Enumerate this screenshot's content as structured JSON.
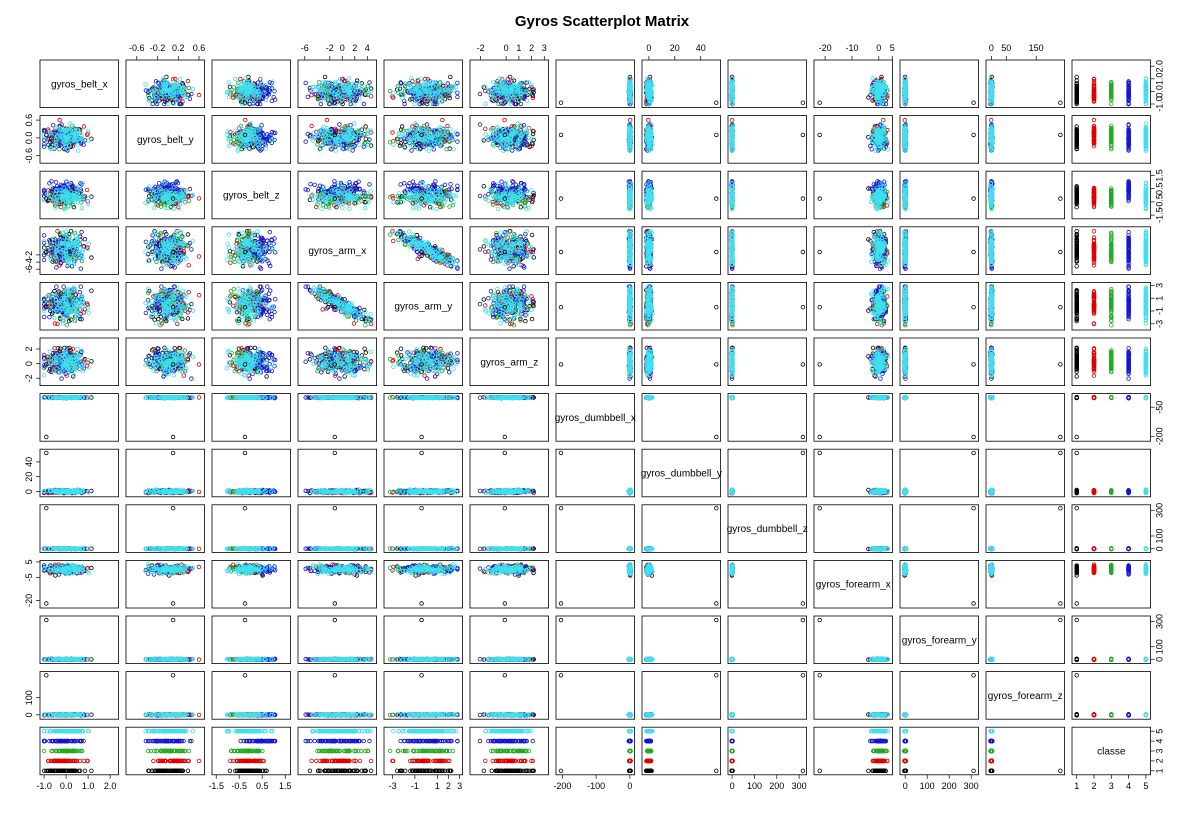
{
  "chart_data": {
    "type": "scatter",
    "title": "Gyros Scatterplot Matrix",
    "variables": [
      {
        "name": "gyros_belt_x",
        "range": [
          -1.05,
          2.25
        ]
      },
      {
        "name": "gyros_belt_y",
        "range": [
          -0.75,
          0.65
        ]
      },
      {
        "name": "gyros_belt_z",
        "range": [
          -1.55,
          1.6
        ]
      },
      {
        "name": "gyros_arm_x",
        "range": [
          -6.6,
          5
        ]
      },
      {
        "name": "gyros_arm_y",
        "range": [
          -3.5,
          3
        ]
      },
      {
        "name": "gyros_arm_z",
        "range": [
          -2.6,
          3.1
        ]
      },
      {
        "name": "gyros_dumbbell_x",
        "range": [
          -210,
          5
        ]
      },
      {
        "name": "gyros_dumbbell_y",
        "range": [
          -3,
          53
        ]
      },
      {
        "name": "gyros_dumbbell_z",
        "range": [
          -5,
          320
        ]
      },
      {
        "name": "gyros_forearm_x",
        "range": [
          -23,
          4
        ]
      },
      {
        "name": "gyros_forearm_y",
        "range": [
          -10,
          320
        ]
      },
      {
        "name": "gyros_forearm_z",
        "range": [
          -8,
          235
        ]
      },
      {
        "name": "classe",
        "range": [
          0.9,
          5.1
        ]
      }
    ],
    "top_ticks": [
      {
        "col": 1,
        "labels": [
          "-0.6",
          "-0.2",
          "0.2",
          "0.6"
        ],
        "values": [
          -0.6,
          -0.2,
          0.2,
          0.6
        ]
      },
      {
        "col": 3,
        "labels": [
          "-6",
          "-2",
          "0",
          "2",
          "4"
        ],
        "values": [
          -6,
          -2,
          0,
          2,
          4
        ]
      },
      {
        "col": 5,
        "labels": [
          "-2",
          "0",
          "1",
          "2",
          "3"
        ],
        "values": [
          -2,
          0,
          1,
          2,
          3
        ]
      },
      {
        "col": 7,
        "labels": [
          "0",
          "20",
          "40"
        ],
        "values": [
          0,
          20,
          40
        ]
      },
      {
        "col": 9,
        "labels": [
          "-20",
          "-10",
          "0",
          "5"
        ],
        "values": [
          -20,
          -10,
          0,
          5
        ]
      },
      {
        "col": 11,
        "labels": [
          "0",
          "50",
          "150"
        ],
        "values": [
          0,
          50,
          150
        ]
      }
    ],
    "bottom_ticks": [
      {
        "col": 0,
        "labels": [
          "-1.0",
          "0.0",
          "1.0",
          "2.0"
        ],
        "values": [
          -1,
          0,
          1,
          2
        ]
      },
      {
        "col": 2,
        "labels": [
          "-1.5",
          "-0.5",
          "0.5",
          "1.5"
        ],
        "values": [
          -1.5,
          -0.5,
          0.5,
          1.5
        ]
      },
      {
        "col": 4,
        "labels": [
          "-3",
          "-1",
          "1",
          "2",
          "3"
        ],
        "values": [
          -3,
          -1,
          1,
          2,
          3
        ]
      },
      {
        "col": 6,
        "labels": [
          "-200",
          "-100",
          "0"
        ],
        "values": [
          -200,
          -100,
          0
        ]
      },
      {
        "col": 8,
        "labels": [
          "0",
          "100",
          "200",
          "300"
        ],
        "values": [
          0,
          100,
          200,
          300
        ]
      },
      {
        "col": 10,
        "labels": [
          "0",
          "100",
          "200",
          "300"
        ],
        "values": [
          0,
          100,
          200,
          300
        ]
      },
      {
        "col": 12,
        "labels": [
          "1",
          "2",
          "3",
          "4",
          "5"
        ],
        "values": [
          1,
          2,
          3,
          4,
          5
        ]
      }
    ],
    "left_ticks": [
      {
        "row": 1,
        "labels": [
          "-0.6",
          "0.0",
          "0.6"
        ],
        "values": [
          -0.6,
          0,
          0.6
        ]
      },
      {
        "row": 3,
        "labels": [
          "-6",
          "-4",
          "-2"
        ],
        "values": [
          -6,
          -4,
          -2
        ]
      },
      {
        "row": 5,
        "labels": [
          "-2",
          "0",
          "2"
        ],
        "values": [
          -2,
          0,
          2
        ]
      },
      {
        "row": 7,
        "labels": [
          "0",
          "20",
          "40"
        ],
        "values": [
          0,
          20,
          40
        ]
      },
      {
        "row": 9,
        "labels": [
          "-20",
          "-5",
          "5"
        ],
        "values": [
          -20,
          -5,
          5
        ]
      },
      {
        "row": 11,
        "labels": [
          "0",
          "100"
        ],
        "values": [
          0,
          100
        ]
      }
    ],
    "right_ticks": [
      {
        "row": 0,
        "labels": [
          "-1.0",
          "0.0",
          "1.0",
          "2.0"
        ],
        "values": [
          -1,
          0,
          1,
          2
        ]
      },
      {
        "row": 2,
        "labels": [
          "-1.5",
          "-0.5",
          "0.5",
          "1.5"
        ],
        "values": [
          -1.5,
          -0.5,
          0.5,
          1.5
        ]
      },
      {
        "row": 4,
        "labels": [
          "-3",
          "-1",
          "1",
          "3"
        ],
        "values": [
          -3,
          -1,
          1,
          3
        ]
      },
      {
        "row": 6,
        "labels": [
          "-200",
          "-50"
        ],
        "values": [
          -200,
          -50
        ]
      },
      {
        "row": 8,
        "labels": [
          "0",
          "100",
          "300"
        ],
        "values": [
          0,
          100,
          300
        ]
      },
      {
        "row": 10,
        "labels": [
          "0",
          "100",
          "300"
        ],
        "values": [
          0,
          100,
          300
        ]
      },
      {
        "row": 12,
        "labels": [
          "1",
          "2",
          "3",
          "4",
          "5"
        ],
        "values": [
          1,
          2,
          3,
          4,
          5
        ]
      }
    ],
    "classes": [
      {
        "value": 1,
        "color": "#000000"
      },
      {
        "value": 2,
        "color": "#df0000"
      },
      {
        "value": 3,
        "color": "#22aa22"
      },
      {
        "value": 4,
        "color": "#1515d8"
      },
      {
        "value": 5,
        "color": "#3fe0f0"
      }
    ],
    "grid": false,
    "marker": "open-circle"
  }
}
